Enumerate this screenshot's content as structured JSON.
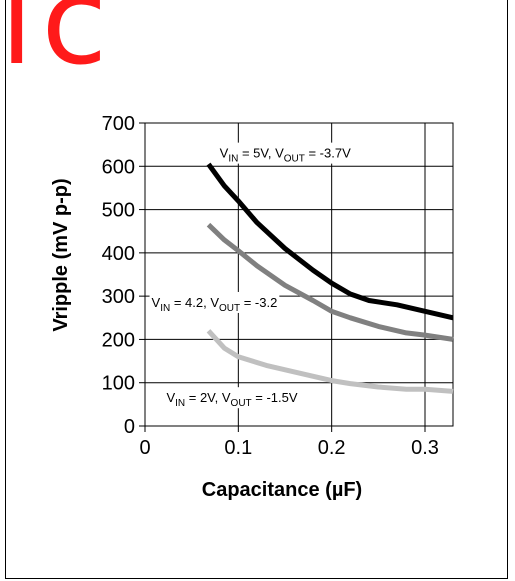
{
  "watermark_text": "ic",
  "chart_data": {
    "type": "line",
    "title": "",
    "xlabel": "Capacitance (µF)",
    "ylabel": "Vripple (mV p-p)",
    "xlim": [
      0,
      0.33
    ],
    "ylim": [
      0,
      700
    ],
    "x_ticks": [
      0,
      0.1,
      0.2,
      0.3
    ],
    "x_tick_labels": [
      "0",
      "0.1",
      "0.2",
      "0.3"
    ],
    "y_ticks": [
      0,
      100,
      200,
      300,
      400,
      500,
      600,
      700
    ],
    "y_tick_labels": [
      "0",
      "100",
      "200",
      "300",
      "400",
      "500",
      "600",
      "700"
    ],
    "grid": true,
    "series": [
      {
        "label_parts": {
          "a": "V",
          "a_sub": "IN",
          "b": " = 5V, V",
          "b_sub": "OUT",
          "c": " = -3.7V"
        },
        "color": "#000000",
        "points": [
          [
            0.068,
            605
          ],
          [
            0.085,
            555
          ],
          [
            0.1,
            520
          ],
          [
            0.12,
            470
          ],
          [
            0.15,
            410
          ],
          [
            0.18,
            360
          ],
          [
            0.2,
            330
          ],
          [
            0.22,
            305
          ],
          [
            0.24,
            290
          ],
          [
            0.27,
            280
          ],
          [
            0.3,
            265
          ],
          [
            0.33,
            250
          ]
        ]
      },
      {
        "label_parts": {
          "a": "V",
          "a_sub": "IN",
          "b": " = 4.2, V",
          "b_sub": "OUT",
          "c": " = -3.2"
        },
        "color": "#808080",
        "points": [
          [
            0.068,
            465
          ],
          [
            0.085,
            430
          ],
          [
            0.1,
            405
          ],
          [
            0.12,
            370
          ],
          [
            0.15,
            325
          ],
          [
            0.18,
            290
          ],
          [
            0.2,
            265
          ],
          [
            0.22,
            250
          ],
          [
            0.25,
            230
          ],
          [
            0.28,
            215
          ],
          [
            0.3,
            210
          ],
          [
            0.33,
            200
          ]
        ]
      },
      {
        "label_parts": {
          "a": "V",
          "a_sub": "IN",
          "b": " = 2V, V",
          "b_sub": "OUT",
          "c": " = -1.5V"
        },
        "color": "#c0c0c0",
        "points": [
          [
            0.068,
            220
          ],
          [
            0.085,
            180
          ],
          [
            0.1,
            160
          ],
          [
            0.13,
            140
          ],
          [
            0.16,
            125
          ],
          [
            0.2,
            105
          ],
          [
            0.22,
            98
          ],
          [
            0.25,
            90
          ],
          [
            0.28,
            85
          ],
          [
            0.3,
            85
          ],
          [
            0.33,
            80
          ]
        ]
      }
    ]
  }
}
